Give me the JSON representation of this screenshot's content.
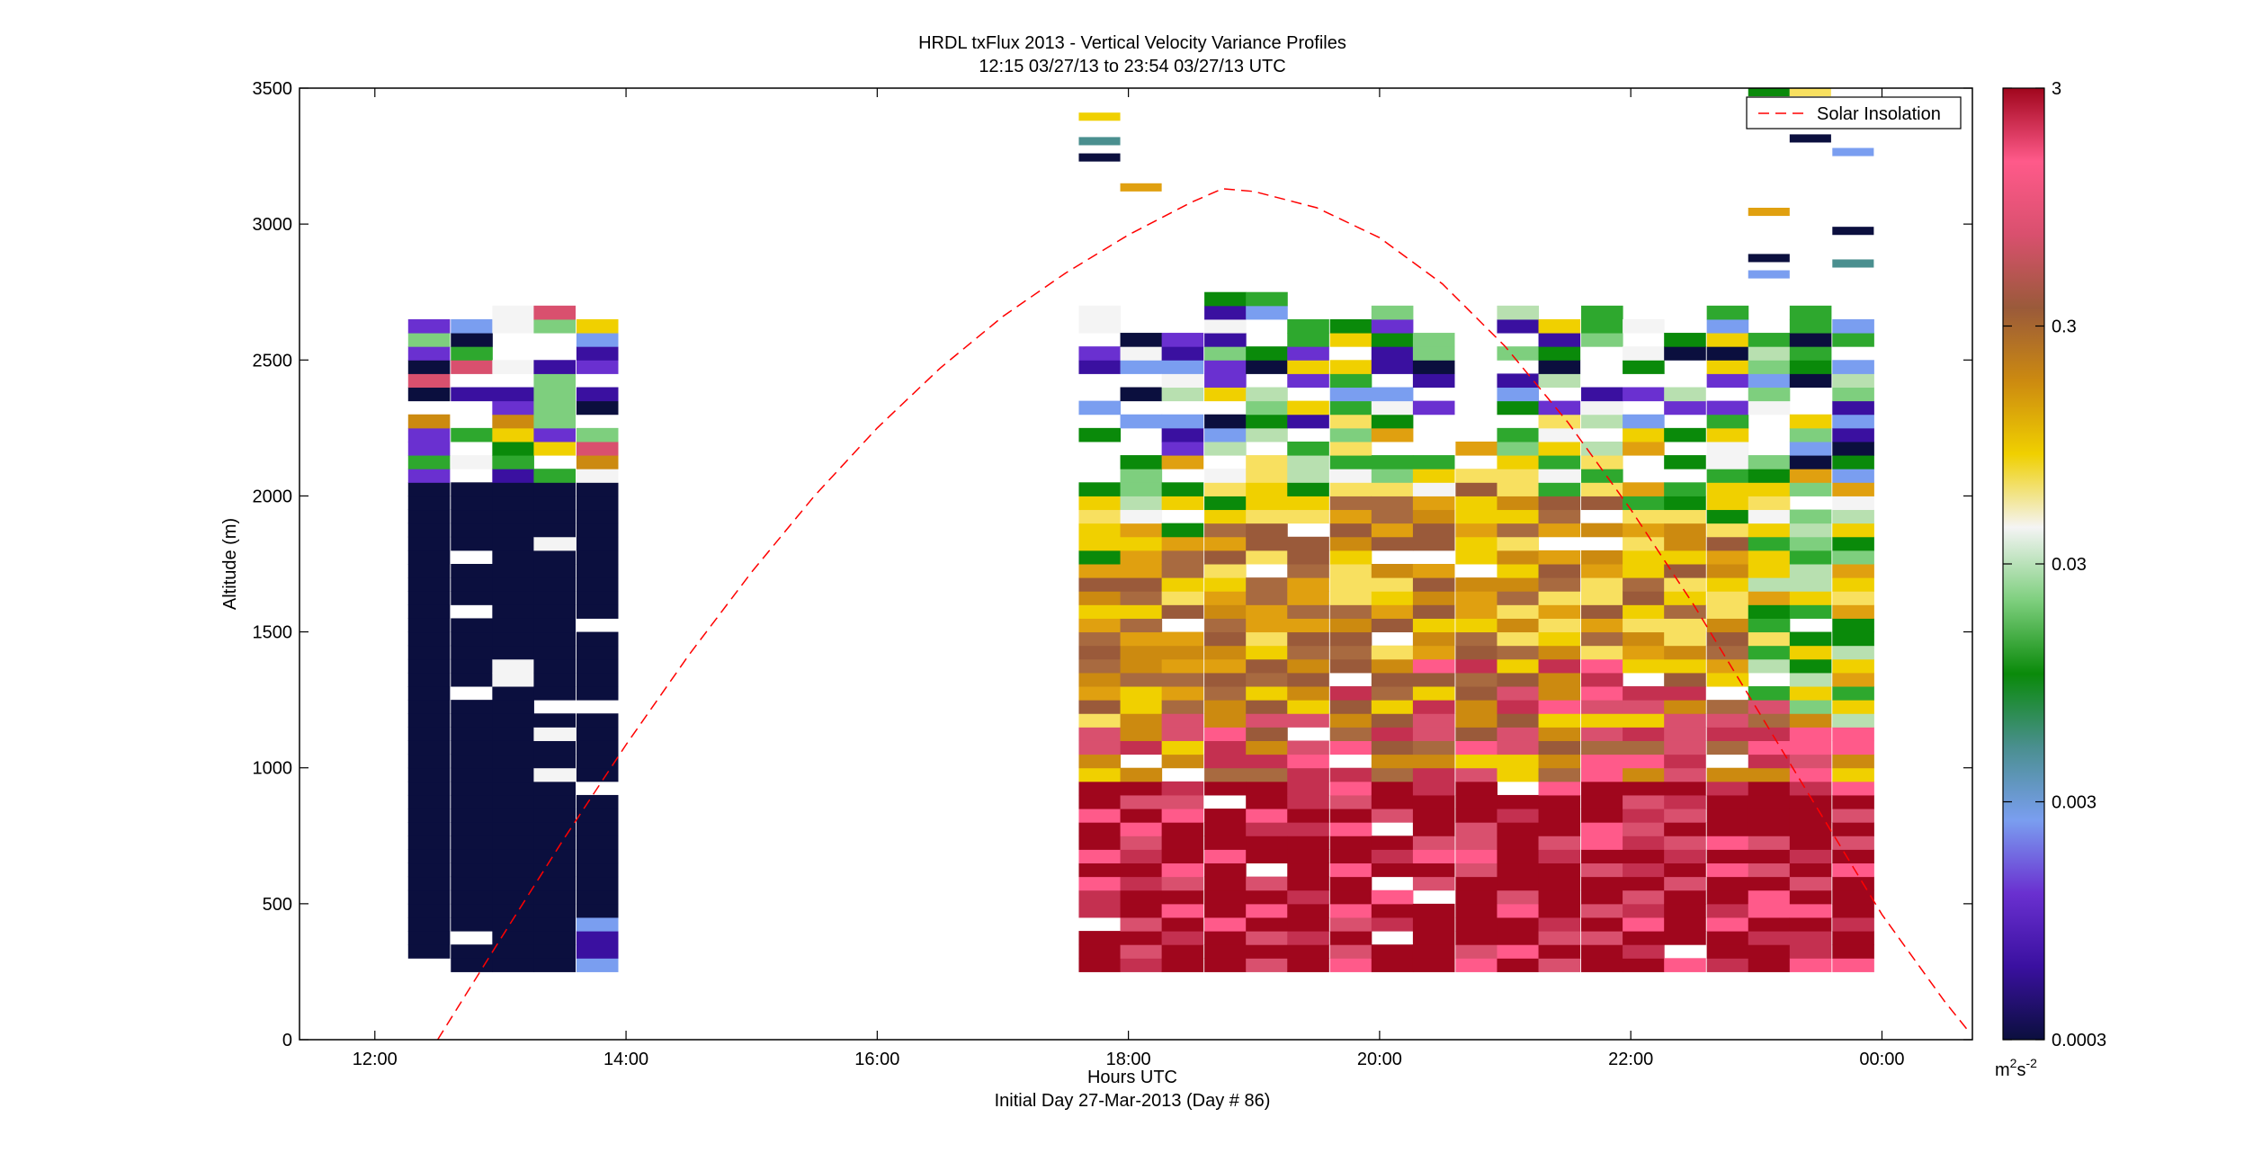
{
  "chart_data": {
    "type": "heatmap",
    "title": "HRDL txFlux 2013 - Vertical Velocity Variance Profiles",
    "subtitle": "12:15 03/27/13 to 23:54 03/27/13  UTC",
    "xlabel": "Hours UTC",
    "xlabel2": "Initial Day 27-Mar-2013 (Day # 86)",
    "ylabel": "Altitude (m)",
    "xlim": [
      11.4,
      24.72
    ],
    "ylim": [
      0,
      3500
    ],
    "x_ticks": [
      {
        "value": 12,
        "label": "12:00"
      },
      {
        "value": 14,
        "label": "14:00"
      },
      {
        "value": 16,
        "label": "16:00"
      },
      {
        "value": 18,
        "label": "18:00"
      },
      {
        "value": 20,
        "label": "20:00"
      },
      {
        "value": 22,
        "label": "22:00"
      },
      {
        "value": 24,
        "label": "00:00"
      }
    ],
    "y_ticks": [
      0,
      500,
      1000,
      1500,
      2000,
      2500,
      3000,
      3500
    ],
    "grid": false,
    "legend": {
      "position": "top-right",
      "entries": [
        "Solar Insolation"
      ]
    },
    "series": [
      {
        "name": "Solar Insolation",
        "style": "dashed",
        "color": "#ff0000",
        "x": [
          12.5,
          13.0,
          13.5,
          14.0,
          14.5,
          15.0,
          15.5,
          16.0,
          16.5,
          17.0,
          17.5,
          18.0,
          18.5,
          18.75,
          19.0,
          19.5,
          20.0,
          20.5,
          21.0,
          21.5,
          22.0,
          22.5,
          23.0,
          23.5,
          24.0,
          24.5,
          24.7
        ],
        "y": [
          0,
          370,
          735,
          1085,
          1415,
          1720,
          2000,
          2250,
          2470,
          2660,
          2820,
          2960,
          3080,
          3130,
          3120,
          3060,
          2950,
          2780,
          2550,
          2270,
          1950,
          1600,
          1220,
          840,
          460,
          140,
          25
        ]
      }
    ],
    "profile_times": [
      12.43,
      12.77,
      13.1,
      13.43,
      13.77,
      17.77,
      18.1,
      18.43,
      18.77,
      19.1,
      19.43,
      19.77,
      20.1,
      20.43,
      20.77,
      21.1,
      21.43,
      21.77,
      22.1,
      22.43,
      22.77,
      23.1,
      23.43,
      23.77
    ],
    "colorbar": {
      "label_base": "m",
      "label_exp1": "2",
      "label_mid": "s",
      "label_exp2": "-2",
      "scale": "log",
      "range": [
        0.0003,
        3
      ],
      "ticks": [
        "0.0003",
        "0.003",
        "0.03",
        "0.3",
        "3"
      ],
      "colors": [
        "#0b0f3e",
        "#3a10a0",
        "#6a30d0",
        "#7a9ef0",
        "#4a8f8f",
        "#0a8a0a",
        "#7ecf7e",
        "#f4f4f4",
        "#f0d000",
        "#cc8a10",
        "#9a5a3a",
        "#d9506e",
        "#ff5a8a",
        "#a0061d"
      ]
    }
  }
}
